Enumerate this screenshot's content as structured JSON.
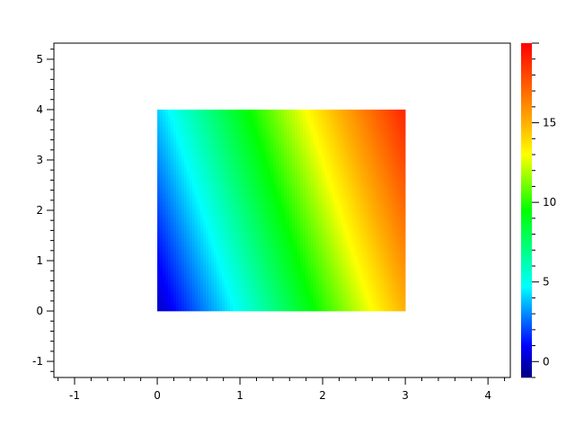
{
  "chart_data": {
    "type": "heatmap",
    "title": "",
    "xlabel": "",
    "ylabel": "",
    "xlim": [
      -1.25,
      4.27
    ],
    "ylim": [
      -1.32,
      5.32
    ],
    "x_ticks": [
      "-1",
      "0",
      "1",
      "2",
      "3",
      "4"
    ],
    "x_tick_values": [
      -1,
      0,
      1,
      2,
      3,
      4
    ],
    "y_ticks": [
      "-1",
      "0",
      "1",
      "2",
      "3",
      "4",
      "5"
    ],
    "y_tick_values": [
      -1,
      0,
      1,
      2,
      3,
      4,
      5
    ],
    "grid": false,
    "x": [
      0,
      1,
      2,
      3
    ],
    "y": [
      0,
      1,
      2,
      3,
      4
    ],
    "z": [
      [
        0,
        5,
        10,
        15
      ],
      [
        1,
        6,
        11,
        16
      ],
      [
        2,
        7,
        12,
        17
      ],
      [
        3,
        8,
        13,
        18
      ],
      [
        4,
        9,
        14,
        19
      ]
    ],
    "colormap": "jet",
    "colorbar": {
      "range": [
        -1,
        20
      ],
      "ticks": [
        "0",
        "5",
        "10",
        "15"
      ],
      "tick_values": [
        0,
        5,
        10,
        15
      ],
      "stops": [
        [
          -1,
          "#000080"
        ],
        [
          1,
          "#0000ff"
        ],
        [
          4.7,
          "#00ffff"
        ],
        [
          9.5,
          "#00ff00"
        ],
        [
          13,
          "#ffff00"
        ],
        [
          15,
          "#ffb000"
        ],
        [
          20,
          "#ff0000"
        ]
      ],
      "placement": "right"
    }
  }
}
